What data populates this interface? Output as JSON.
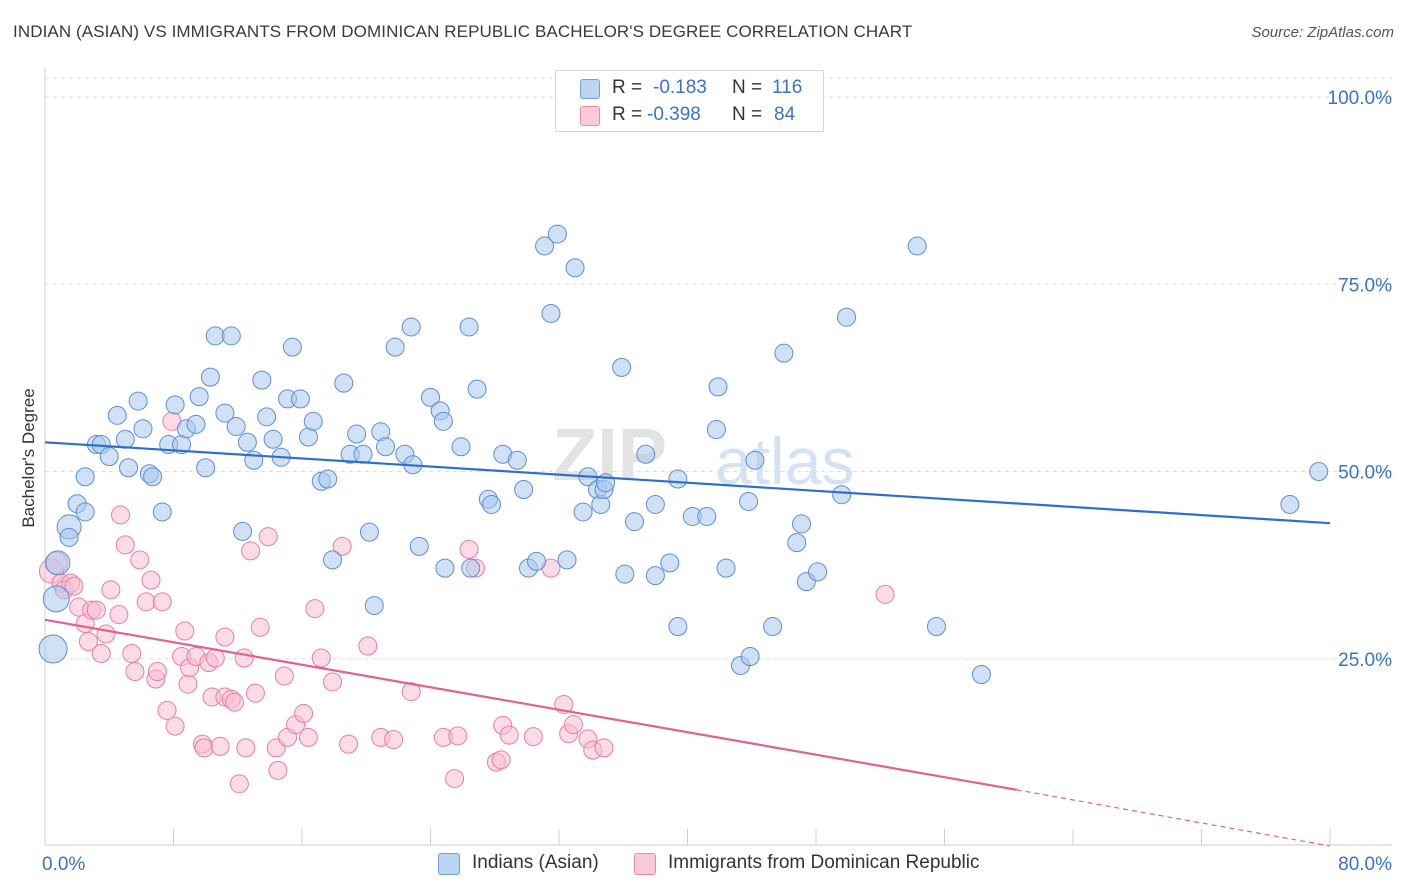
{
  "header": {
    "title": "INDIAN (ASIAN) VS IMMIGRANTS FROM DOMINICAN REPUBLIC BACHELOR'S DEGREE CORRELATION CHART",
    "source": "Source: ZipAtlas.com"
  },
  "watermark": {
    "zip": "ZIP",
    "atlas": "atlas"
  },
  "legend": {
    "series1": {
      "r_label": "R =",
      "r_value": "-0.183",
      "n_label": "N =",
      "n_value": "116",
      "color": "#8ab4e8"
    },
    "series2": {
      "r_label": "R =",
      "r_value": "-0.398",
      "n_label": "N =",
      "n_value": "84",
      "color": "#f2a0bc"
    }
  },
  "bottom_legend": {
    "series1_label": "Indians (Asian)",
    "series2_label": "Immigrants from Dominican Republic"
  },
  "colors": {
    "blue_fill": "#a9c8ee",
    "blue_stroke": "#5b8fd6",
    "blue_line": "#2f6fcb",
    "pink_fill": "#f7bdd0",
    "pink_stroke": "#e67fa3",
    "pink_line": "#e0628e",
    "tick_label": "#3a72c8",
    "grid": "#dedede"
  },
  "chart_data": {
    "type": "scatter",
    "title": "INDIAN (ASIAN) VS IMMIGRANTS FROM DOMINICAN REPUBLIC BACHELOR'S DEGREE CORRELATION CHART",
    "xlabel": "",
    "ylabel": "Bachelor's Degree",
    "xlim": [
      0,
      80
    ],
    "ylim": [
      0,
      100
    ],
    "x_tick_labels": [
      "0.0%",
      "80.0%"
    ],
    "y_ticks": [
      25,
      50,
      75,
      100
    ],
    "y_tick_labels": [
      "25.0%",
      "50.0%",
      "75.0%",
      "100.0%"
    ],
    "grid": true,
    "series": [
      {
        "name": "Indians (Asian)",
        "r": -0.183,
        "n": 116,
        "trend": {
          "x0": 0,
          "y0": 53.9,
          "x1": 80,
          "y1": 43.1
        },
        "points": [
          [
            0.5,
            26.3
          ],
          [
            0.7,
            33
          ],
          [
            0.8,
            37.8
          ],
          [
            1.5,
            42.6
          ],
          [
            2,
            45.7
          ],
          [
            2.5,
            44.6
          ],
          [
            1.5,
            41.2
          ],
          [
            2.5,
            49.3
          ],
          [
            3.2,
            53.6
          ],
          [
            3.5,
            53.6
          ],
          [
            4,
            52
          ],
          [
            4.5,
            57.5
          ],
          [
            5,
            54.3
          ],
          [
            5.2,
            50.5
          ],
          [
            5.8,
            59.4
          ],
          [
            6.1,
            55.7
          ],
          [
            6.5,
            49.7
          ],
          [
            6.7,
            49.3
          ],
          [
            7.3,
            44.6
          ],
          [
            7.7,
            53.6
          ],
          [
            8.1,
            58.9
          ],
          [
            8.5,
            53.6
          ],
          [
            8.8,
            55.7
          ],
          [
            9.4,
            56.3
          ],
          [
            9.6,
            60
          ],
          [
            10,
            50.5
          ],
          [
            10.3,
            62.6
          ],
          [
            10.6,
            68.1
          ],
          [
            11.2,
            57.8
          ],
          [
            11.6,
            68.1
          ],
          [
            11.9,
            56
          ],
          [
            12.3,
            42
          ],
          [
            12.6,
            53.9
          ],
          [
            13,
            51.5
          ],
          [
            13.5,
            62.2
          ],
          [
            13.8,
            57.3
          ],
          [
            14.2,
            54.3
          ],
          [
            14.7,
            51.9
          ],
          [
            15.1,
            59.7
          ],
          [
            15.4,
            66.6
          ],
          [
            15.9,
            59.7
          ],
          [
            16.4,
            54.6
          ],
          [
            16.7,
            56.7
          ],
          [
            17.2,
            48.7
          ],
          [
            17.6,
            49
          ],
          [
            17.9,
            38.2
          ],
          [
            18.6,
            61.8
          ],
          [
            19,
            52.3
          ],
          [
            19.4,
            55
          ],
          [
            19.8,
            52.3
          ],
          [
            20.2,
            41.9
          ],
          [
            20.5,
            32.1
          ],
          [
            20.9,
            55.3
          ],
          [
            21.2,
            53.3
          ],
          [
            21.8,
            66.6
          ],
          [
            22.4,
            52.3
          ],
          [
            22.8,
            69.3
          ],
          [
            22.9,
            50.9
          ],
          [
            23.3,
            40
          ],
          [
            24,
            59.9
          ],
          [
            24.6,
            58.1
          ],
          [
            24.8,
            56.7
          ],
          [
            24.9,
            37.1
          ],
          [
            25.9,
            53.3
          ],
          [
            26.4,
            69.3
          ],
          [
            26.5,
            37.1
          ],
          [
            26.9,
            61
          ],
          [
            27.6,
            46.3
          ],
          [
            27.8,
            45.6
          ],
          [
            28.5,
            52.3
          ],
          [
            29.4,
            51.5
          ],
          [
            29.8,
            47.6
          ],
          [
            30.1,
            37.1
          ],
          [
            30.6,
            38
          ],
          [
            31.1,
            80.1
          ],
          [
            31.5,
            71.1
          ],
          [
            31.9,
            81.7
          ],
          [
            32.5,
            38.2
          ],
          [
            33,
            77.2
          ],
          [
            33.5,
            44.6
          ],
          [
            33.8,
            49.3
          ],
          [
            34.4,
            47.6
          ],
          [
            34.6,
            45.6
          ],
          [
            34.8,
            47.6
          ],
          [
            34.9,
            48.5
          ],
          [
            35.9,
            63.9
          ],
          [
            36.1,
            36.3
          ],
          [
            36.7,
            43.3
          ],
          [
            37.4,
            52.3
          ],
          [
            38,
            45.6
          ],
          [
            38,
            36.1
          ],
          [
            38.9,
            37.8
          ],
          [
            39.4,
            29.3
          ],
          [
            39.4,
            49
          ],
          [
            40.3,
            44
          ],
          [
            41.2,
            44
          ],
          [
            41.8,
            55.6
          ],
          [
            41.9,
            61.3
          ],
          [
            42.4,
            37.1
          ],
          [
            43.3,
            24.1
          ],
          [
            43.8,
            46
          ],
          [
            43.9,
            25.3
          ],
          [
            44.2,
            51.5
          ],
          [
            45.3,
            29.3
          ],
          [
            46,
            65.8
          ],
          [
            46.8,
            40.5
          ],
          [
            47.1,
            43
          ],
          [
            47.4,
            35.3
          ],
          [
            48.1,
            36.6
          ],
          [
            49.6,
            46.9
          ],
          [
            49.9,
            70.6
          ],
          [
            54.3,
            80.1
          ],
          [
            55.5,
            29.3
          ],
          [
            58.3,
            22.9
          ],
          [
            77.5,
            45.6
          ],
          [
            79.3,
            50
          ]
        ]
      },
      {
        "name": "Immigrants from Dominican Republic",
        "r": -0.398,
        "n": 84,
        "trend": {
          "x0": 0,
          "y0": 30.2,
          "x1": 60.5,
          "y1": 7.5
        },
        "trend_dashed_end": {
          "x": 80,
          "y": 0
        },
        "points": [
          [
            0.4,
            36.7
          ],
          [
            0.7,
            37.8
          ],
          [
            1,
            35.1
          ],
          [
            1.2,
            34.2
          ],
          [
            1.6,
            35.1
          ],
          [
            1.8,
            34.7
          ],
          [
            2.1,
            31.9
          ],
          [
            2.5,
            29.7
          ],
          [
            2.7,
            27.3
          ],
          [
            2.9,
            31.5
          ],
          [
            3.2,
            31.5
          ],
          [
            3.5,
            25.7
          ],
          [
            3.8,
            28.3
          ],
          [
            4.1,
            34.2
          ],
          [
            4.6,
            30.9
          ],
          [
            4.7,
            44.2
          ],
          [
            5,
            40.2
          ],
          [
            5.4,
            25.7
          ],
          [
            5.6,
            23.3
          ],
          [
            5.9,
            38.2
          ],
          [
            6.3,
            32.6
          ],
          [
            6.6,
            35.5
          ],
          [
            6.9,
            22.3
          ],
          [
            7,
            23.3
          ],
          [
            7.3,
            32.6
          ],
          [
            7.6,
            18.1
          ],
          [
            7.9,
            56.7
          ],
          [
            8.1,
            16
          ],
          [
            8.5,
            25.3
          ],
          [
            8.7,
            28.7
          ],
          [
            8.9,
            21.6
          ],
          [
            9,
            23.8
          ],
          [
            9.4,
            25.3
          ],
          [
            9.8,
            13.6
          ],
          [
            9.9,
            13.1
          ],
          [
            10.2,
            24.5
          ],
          [
            10.4,
            19.9
          ],
          [
            10.6,
            25.1
          ],
          [
            10.9,
            13.3
          ],
          [
            11.2,
            19.9
          ],
          [
            11.2,
            27.9
          ],
          [
            11.6,
            19.6
          ],
          [
            11.8,
            19.2
          ],
          [
            12.1,
            8.3
          ],
          [
            12.4,
            25.1
          ],
          [
            12.5,
            13.1
          ],
          [
            12.8,
            39.4
          ],
          [
            13.1,
            20.4
          ],
          [
            13.4,
            29.2
          ],
          [
            13.9,
            41.3
          ],
          [
            14.4,
            13.1
          ],
          [
            14.5,
            10.1
          ],
          [
            14.9,
            22.7
          ],
          [
            15.1,
            14.5
          ],
          [
            15.6,
            16.2
          ],
          [
            16.1,
            17.7
          ],
          [
            16.4,
            14.5
          ],
          [
            16.8,
            31.7
          ],
          [
            17.2,
            25.1
          ],
          [
            17.9,
            21.9
          ],
          [
            18.5,
            40
          ],
          [
            18.9,
            13.6
          ],
          [
            20.1,
            26.7
          ],
          [
            20.9,
            14.5
          ],
          [
            21.7,
            14.2
          ],
          [
            22.8,
            20.6
          ],
          [
            24.8,
            14.5
          ],
          [
            25.5,
            9
          ],
          [
            25.7,
            14.7
          ],
          [
            26.4,
            39.6
          ],
          [
            26.8,
            37.1
          ],
          [
            28.1,
            11.2
          ],
          [
            28.5,
            16.1
          ],
          [
            28.9,
            14.8
          ],
          [
            28.4,
            11.5
          ],
          [
            30.4,
            14.6
          ],
          [
            31.5,
            37.1
          ],
          [
            32.3,
            18.9
          ],
          [
            32.6,
            15
          ],
          [
            32.9,
            16.2
          ],
          [
            33.8,
            14.3
          ],
          [
            34.1,
            12.8
          ],
          [
            34.8,
            13.1
          ],
          [
            52.3,
            33.6
          ]
        ]
      }
    ]
  }
}
